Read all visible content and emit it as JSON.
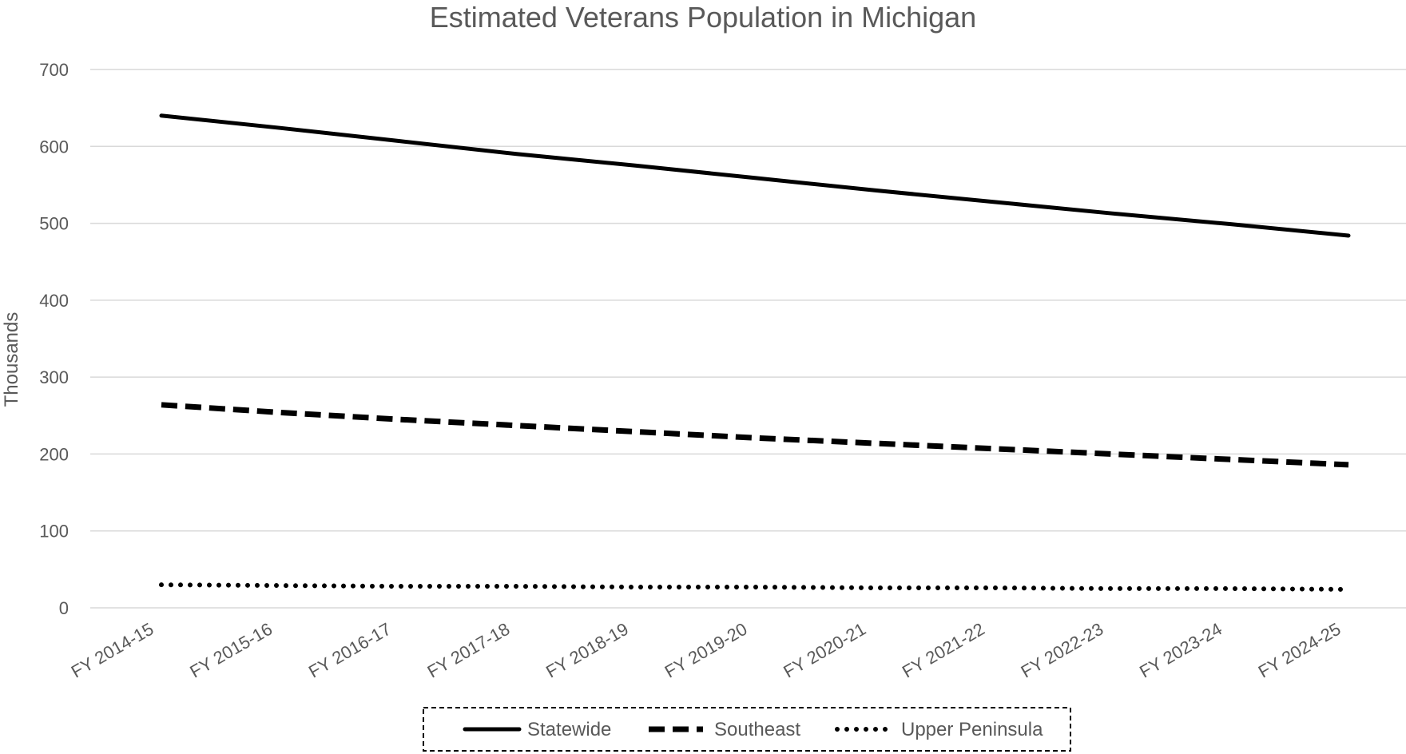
{
  "chart_data": {
    "type": "line",
    "title": "Estimated Veterans Population in Michigan",
    "xlabel": "",
    "ylabel": "Thousands",
    "ylim": [
      0,
      700
    ],
    "yticks": [
      0,
      100,
      200,
      300,
      400,
      500,
      600,
      700
    ],
    "grid": true,
    "legend_position": "bottom",
    "categories": [
      "FY 2014-15",
      "FY 2015-16",
      "FY 2016-17",
      "FY 2017-18",
      "FY 2018-19",
      "FY 2019-20",
      "FY 2020-21",
      "FY 2021-22",
      "FY 2022-23",
      "FY 2023-24",
      "FY 2024-25"
    ],
    "series": [
      {
        "name": "Statewide",
        "style": "solid",
        "color": "#000000",
        "values": [
          640,
          624,
          607,
          590,
          575,
          559,
          543,
          528,
          513,
          499,
          484
        ]
      },
      {
        "name": "Southeast",
        "style": "dashed",
        "color": "#000000",
        "values": [
          264,
          254,
          245,
          237,
          229,
          221,
          214,
          207,
          200,
          193,
          186
        ]
      },
      {
        "name": "Upper Peninsula",
        "style": "dotted",
        "color": "#000000",
        "values": [
          30,
          29,
          28,
          28,
          27,
          27,
          26,
          26,
          25,
          25,
          24
        ]
      }
    ]
  }
}
